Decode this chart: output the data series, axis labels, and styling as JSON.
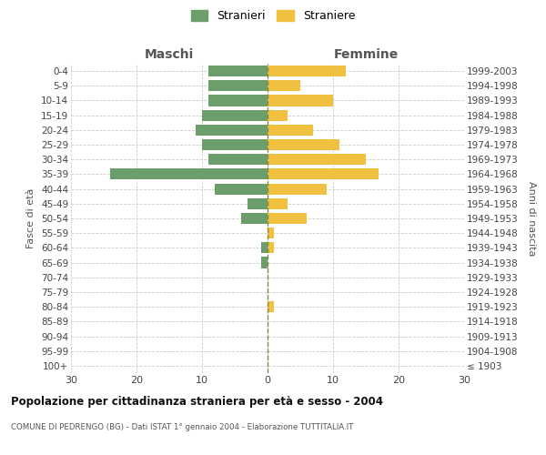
{
  "age_groups": [
    "100+",
    "95-99",
    "90-94",
    "85-89",
    "80-84",
    "75-79",
    "70-74",
    "65-69",
    "60-64",
    "55-59",
    "50-54",
    "45-49",
    "40-44",
    "35-39",
    "30-34",
    "25-29",
    "20-24",
    "15-19",
    "10-14",
    "5-9",
    "0-4"
  ],
  "birth_years": [
    "≤ 1903",
    "1904-1908",
    "1909-1913",
    "1914-1918",
    "1919-1923",
    "1924-1928",
    "1929-1933",
    "1934-1938",
    "1939-1943",
    "1944-1948",
    "1949-1953",
    "1954-1958",
    "1959-1963",
    "1964-1968",
    "1969-1973",
    "1974-1978",
    "1979-1983",
    "1984-1988",
    "1989-1993",
    "1994-1998",
    "1999-2003"
  ],
  "maschi": [
    0,
    0,
    0,
    0,
    0,
    0,
    0,
    1,
    1,
    0,
    4,
    3,
    8,
    24,
    9,
    10,
    11,
    10,
    9,
    9,
    9
  ],
  "femmine": [
    0,
    0,
    0,
    0,
    1,
    0,
    0,
    0,
    1,
    1,
    6,
    3,
    9,
    17,
    15,
    11,
    7,
    3,
    10,
    5,
    12
  ],
  "color_maschi": "#6b9e6b",
  "color_femmine": "#f0c040",
  "title": "Popolazione per cittadinanza straniera per età e sesso - 2004",
  "subtitle": "COMUNE DI PEDRENGO (BG) - Dati ISTAT 1° gennaio 2004 - Elaborazione TUTTITALIA.IT",
  "label_maschi": "Maschi",
  "label_femmine": "Femmine",
  "ylabel_left": "Fasce di età",
  "ylabel_right": "Anni di nascita",
  "xlim": 30,
  "legend_stranieri": "Stranieri",
  "legend_straniere": "Straniere",
  "background_color": "#ffffff",
  "grid_color": "#cccccc",
  "tick_vals": [
    -30,
    -20,
    -10,
    0,
    10,
    20,
    30
  ]
}
